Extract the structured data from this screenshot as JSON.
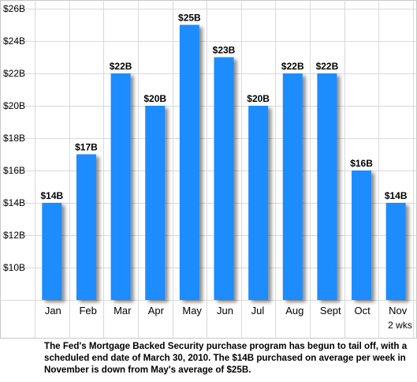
{
  "chart_data": {
    "type": "bar",
    "categories": [
      "Jan",
      "Feb",
      "Mar",
      "Apr",
      "May",
      "Jun",
      "Jul",
      "Aug",
      "Sept",
      "Oct",
      "Nov"
    ],
    "category_sublabels": [
      "",
      "",
      "",
      "",
      "",
      "",
      "",
      "",
      "",
      "",
      "2 wks"
    ],
    "values": [
      14,
      17,
      22,
      20,
      25,
      23,
      20,
      22,
      22,
      16,
      14
    ],
    "data_labels": [
      "$14B",
      "$17B",
      "$22B",
      "$20B",
      "$25B",
      "$23B",
      "$20B",
      "$22B",
      "$22B",
      "$16B",
      "$14B"
    ],
    "ylim": [
      8,
      26
    ],
    "yticks": [
      10,
      12,
      14,
      16,
      18,
      20,
      22,
      24,
      26
    ],
    "ytick_labels": [
      "$10B",
      "$12B",
      "$14B",
      "$16B",
      "$18B",
      "$20B",
      "$22B",
      "$24B",
      "$26B"
    ],
    "bar_color": "#1a8cff",
    "grid": true,
    "title": "",
    "xlabel": "",
    "ylabel": ""
  },
  "caption": "The Fed's Mortgage Backed Security purchase program has begun to tail off, with a scheduled end date of March 30, 2010.  The $14B purchased on average per week in November is down from May's average of $25B."
}
